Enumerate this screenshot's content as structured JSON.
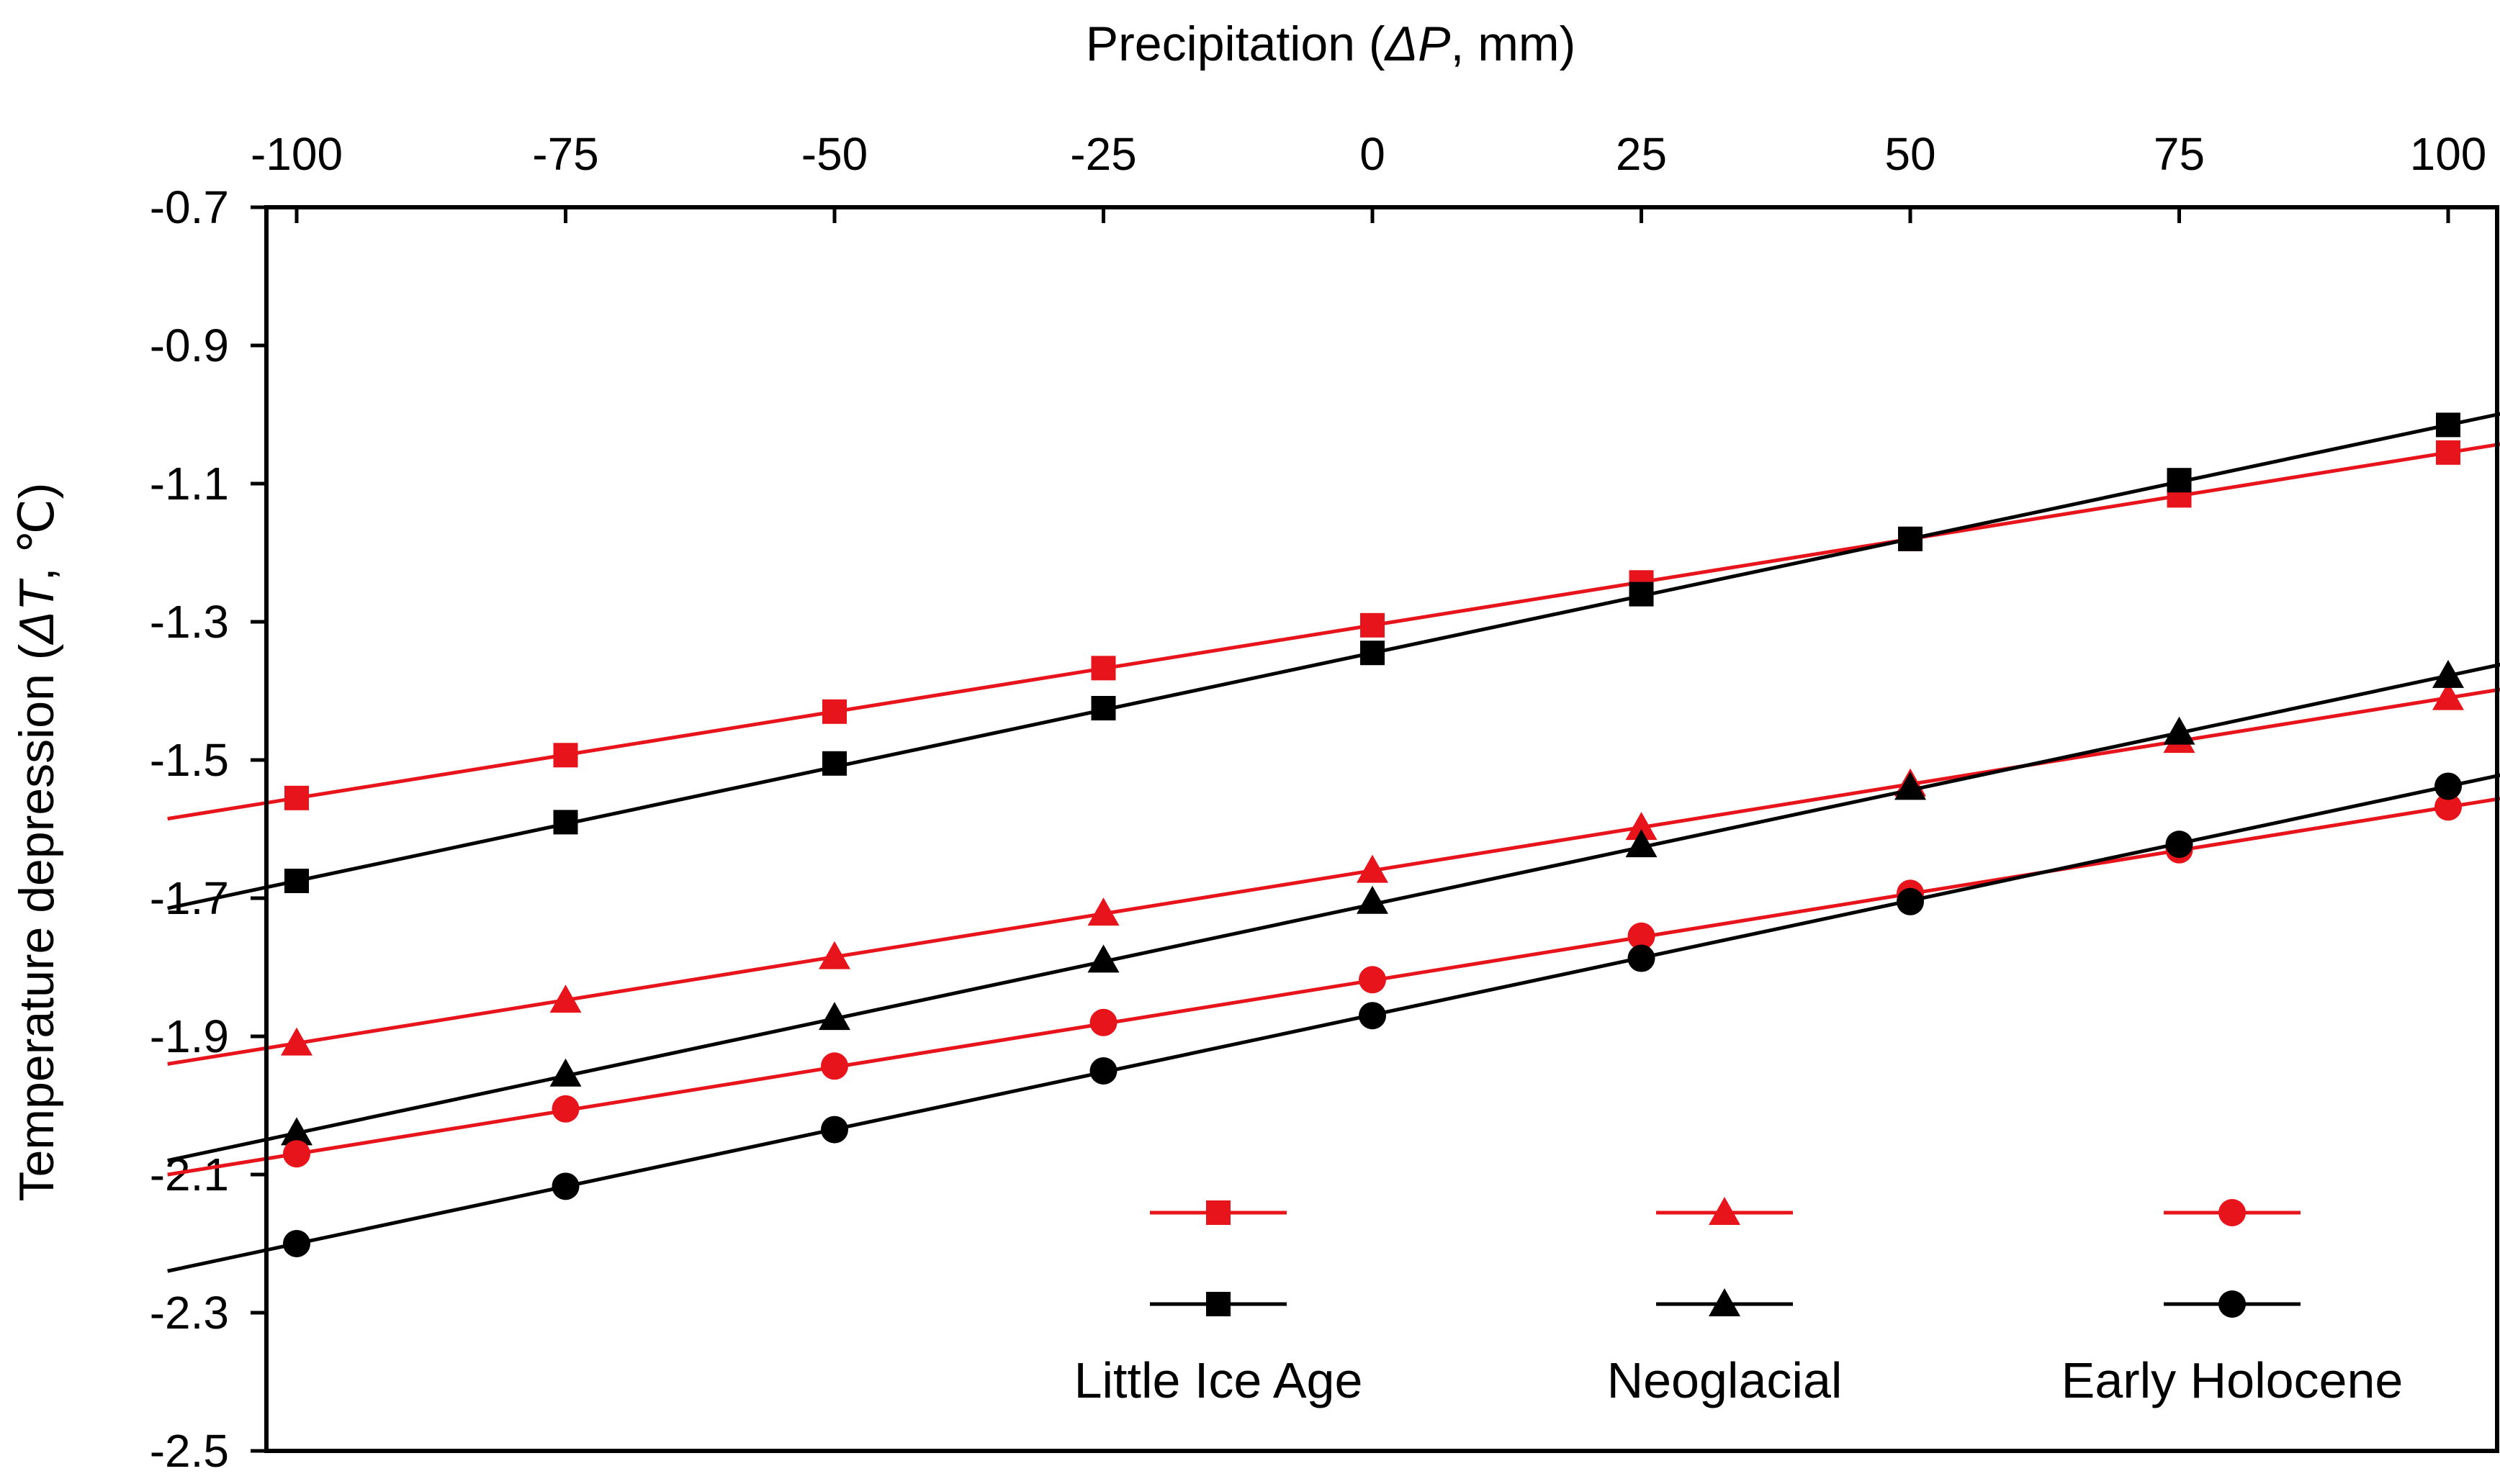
{
  "chart_data": {
    "type": "line",
    "xlabel": "Precipitation (ΔP, mm)",
    "ylabel": "Temperature depression (ΔT, ℃)",
    "xlim": [
      -100,
      100
    ],
    "ylim": [
      -2.5,
      -0.7
    ],
    "x_ticks": [
      -100,
      -75,
      -50,
      -25,
      0,
      25,
      50,
      75,
      100
    ],
    "x_tick_labels": [
      "-100",
      "-75",
      "-50",
      "-25",
      "0",
      "25",
      "50",
      "75",
      "100"
    ],
    "y_ticks": [
      -0.7,
      -0.9,
      -1.1,
      -1.3,
      -1.5,
      -1.7,
      -1.9,
      -2.1,
      -2.3,
      -2.5
    ],
    "y_tick_labels": [
      "-0.7",
      "-0.9",
      "-1.1",
      "-1.3",
      "-1.5",
      "-1.7",
      "-1.9",
      "-2.1",
      "-2.3",
      "-2.5"
    ],
    "x": [
      -100,
      -75,
      -50,
      -25,
      0,
      25,
      50,
      75,
      100
    ],
    "grid": false,
    "legend_position": "bottom-right",
    "legend_groups": [
      {
        "label": "Little Ice Age",
        "marker": "square"
      },
      {
        "label": "Neoglacial",
        "marker": "triangle"
      },
      {
        "label": "Early Holocene",
        "marker": "circle"
      }
    ],
    "series": [
      {
        "name": "Little Ice Age (red)",
        "group": "Little Ice Age",
        "color": "#e8141c",
        "marker": "square",
        "values": [
          -1.555,
          -1.493,
          -1.43,
          -1.367,
          -1.305,
          -1.243,
          -1.18,
          -1.117,
          -1.055
        ]
      },
      {
        "name": "Little Ice Age (black)",
        "group": "Little Ice Age",
        "color": "#000000",
        "marker": "square",
        "values": [
          -1.675,
          -1.59,
          -1.505,
          -1.425,
          -1.345,
          -1.26,
          -1.18,
          -1.095,
          -1.015
        ]
      },
      {
        "name": "Neoglacial (red)",
        "group": "Neoglacial",
        "color": "#e8141c",
        "marker": "triangle",
        "values": [
          -1.91,
          -1.848,
          -1.785,
          -1.722,
          -1.66,
          -1.598,
          -1.535,
          -1.472,
          -1.41
        ]
      },
      {
        "name": "Neoglacial (black)",
        "group": "Neoglacial",
        "color": "#000000",
        "marker": "triangle",
        "values": [
          -2.04,
          -1.955,
          -1.873,
          -1.79,
          -1.705,
          -1.623,
          -1.54,
          -1.46,
          -1.378
        ]
      },
      {
        "name": "Early Holocene (red)",
        "group": "Early Holocene",
        "color": "#e8141c",
        "marker": "circle",
        "values": [
          -2.07,
          -2.005,
          -1.943,
          -1.88,
          -1.818,
          -1.755,
          -1.693,
          -1.63,
          -1.568
        ]
      },
      {
        "name": "Early Holocene (black)",
        "group": "Early Holocene",
        "color": "#000000",
        "marker": "circle",
        "values": [
          -2.2,
          -2.117,
          -2.035,
          -1.95,
          -1.87,
          -1.787,
          -1.705,
          -1.622,
          -1.538
        ]
      }
    ]
  }
}
